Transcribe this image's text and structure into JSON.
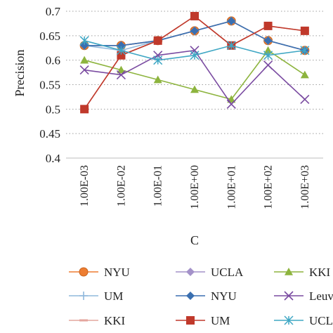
{
  "chart_data": {
    "type": "line",
    "title": "",
    "xlabel": "C",
    "ylabel": "Precision",
    "categories": [
      "1.00E-03",
      "1.00E-02",
      "1.00E-01",
      "1.00E+00",
      "1.00E+01",
      "1.00E+02",
      "1.00E+03"
    ],
    "y_ticks": [
      "0.4",
      "0.45",
      "0.5",
      "0.55",
      "0.6",
      "0.65",
      "0.7"
    ],
    "ylim": [
      0.4,
      0.7
    ],
    "grid": "horizontal dotted",
    "legend_position": "bottom",
    "series": [
      {
        "name": "NYU",
        "marker": "circle",
        "color": "#ed7d31",
        "values": [
          0.63,
          0.63,
          0.64,
          0.66,
          0.68,
          0.64,
          0.62
        ]
      },
      {
        "name": "UCLA",
        "marker": "diamond",
        "color": "#a492c9",
        "values": [
          0.63,
          0.63,
          0.64,
          0.66,
          0.68,
          0.64,
          0.62
        ]
      },
      {
        "name": "KKI",
        "marker": "triangle",
        "color": "#8db43e",
        "values": [
          0.6,
          0.58,
          0.56,
          0.54,
          0.52,
          0.62,
          0.57
        ]
      },
      {
        "name": "UM",
        "marker": "plus",
        "color": "#8fb8dc",
        "values": [
          0.63,
          0.62,
          0.64,
          0.66,
          0.68,
          0.64,
          0.62
        ]
      },
      {
        "name": "NYU",
        "marker": "diamond",
        "color": "#3a6fb0",
        "values": [
          0.63,
          0.63,
          0.64,
          0.66,
          0.68,
          0.64,
          0.62
        ]
      },
      {
        "name": "Leuven",
        "marker": "x",
        "color": "#7a4ba1",
        "values": [
          0.58,
          0.57,
          0.61,
          0.62,
          0.51,
          0.59,
          0.52
        ]
      },
      {
        "name": "KKI",
        "marker": "dash",
        "color": "#e4a59e",
        "values": [
          0.5,
          0.61,
          0.64,
          0.69,
          0.63,
          0.67,
          0.66
        ]
      },
      {
        "name": "UM",
        "marker": "square",
        "color": "#c0392b",
        "values": [
          0.5,
          0.61,
          0.64,
          0.69,
          0.63,
          0.67,
          0.66
        ]
      },
      {
        "name": "UCLA",
        "marker": "star",
        "color": "#3fa7c4",
        "values": [
          0.64,
          0.62,
          0.6,
          0.61,
          0.63,
          0.61,
          0.62
        ]
      }
    ]
  }
}
